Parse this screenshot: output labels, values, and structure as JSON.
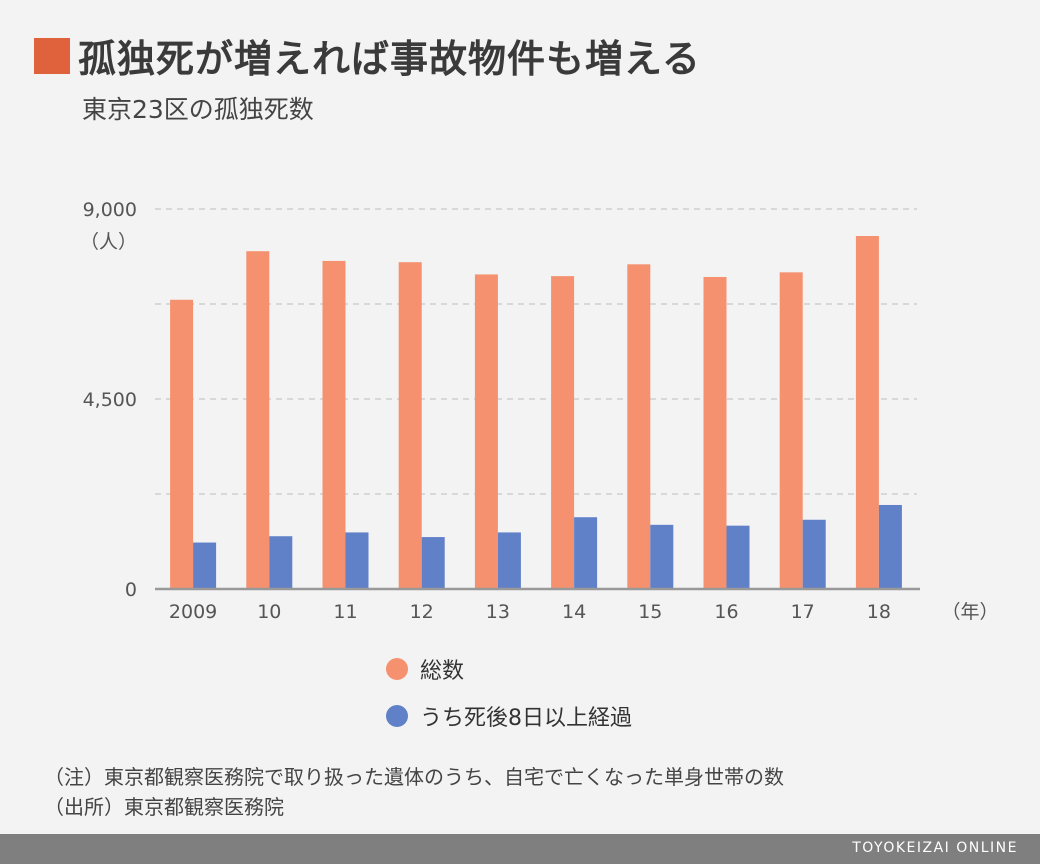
{
  "header": {
    "title": "孤独死が増えれば事故物件も増える",
    "subtitle": "東京23区の孤独死数",
    "marker_color": "#e0623c"
  },
  "chart_data": {
    "type": "bar",
    "categories": [
      "2009",
      "10",
      "11",
      "12",
      "13",
      "14",
      "15",
      "16",
      "17",
      "18"
    ],
    "series": [
      {
        "name": "総数",
        "color": "#f5916e",
        "values": [
          6850,
          8000,
          7770,
          7740,
          7450,
          7410,
          7690,
          7390,
          7500,
          8360
        ]
      },
      {
        "name": "うち死後8日以上経過",
        "color": "#6080c8",
        "values": [
          1100,
          1250,
          1340,
          1230,
          1340,
          1700,
          1520,
          1500,
          1640,
          1990
        ]
      }
    ],
    "ylim": [
      0,
      9000
    ],
    "ytick_labels": [
      "0",
      "4,500",
      "9,000"
    ],
    "y_unit": "（人）",
    "x_unit": "（年）",
    "grid": true
  },
  "notes": [
    "（注）東京都観察医務院で取り扱った遺体のうち、自宅で亡くなった単身世帯の数",
    "（出所）東京都観察医務院"
  ],
  "footer": {
    "brand": "TOYOKEIZAI ONLINE"
  }
}
